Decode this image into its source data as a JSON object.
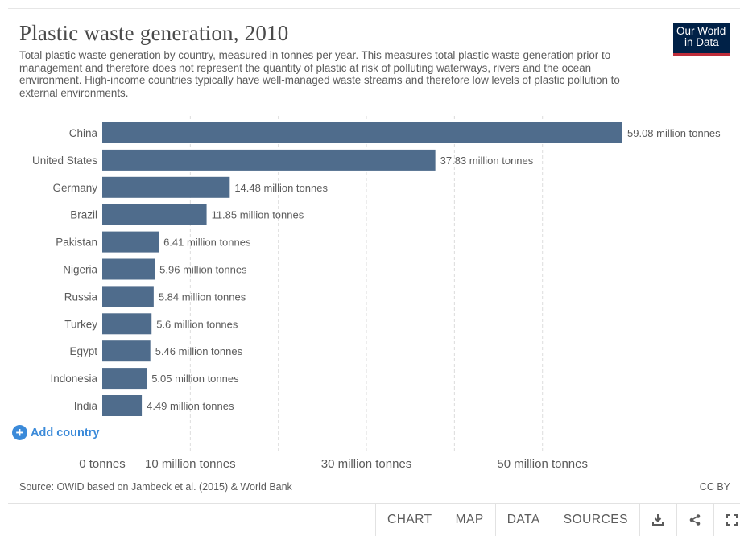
{
  "header": {
    "title": "Plastic waste generation, 2010",
    "subtitle": "Total plastic waste generation by country, measured in tonnes per year. This measures total plastic waste generation prior to management and therefore does not represent the quantity of plastic at risk of polluting waterways, rivers and the ocean environment. High-income countries typically have well-managed waste streams and therefore low levels of plastic pollution to external environments.",
    "logo_line1": "Our World",
    "logo_line2": "in Data"
  },
  "chart_data": {
    "type": "bar",
    "orientation": "horizontal",
    "categories": [
      "China",
      "United States",
      "Germany",
      "Brazil",
      "Pakistan",
      "Nigeria",
      "Russia",
      "Turkey",
      "Egypt",
      "Indonesia",
      "India"
    ],
    "values": [
      59.08,
      37.83,
      14.48,
      11.85,
      6.41,
      5.96,
      5.84,
      5.6,
      5.46,
      5.05,
      4.49
    ],
    "value_labels": [
      "59.08 million tonnes",
      "37.83 million tonnes",
      "14.48 million tonnes",
      "11.85 million tonnes",
      "6.41 million tonnes",
      "5.96 million tonnes",
      "5.84 million tonnes",
      "5.6 million tonnes",
      "5.46 million tonnes",
      "5.05 million tonnes",
      "4.49 million tonnes"
    ],
    "unit": "million tonnes",
    "xlim": [
      0,
      59.08
    ],
    "x_ticks": [
      0,
      10,
      30,
      50
    ],
    "x_tick_labels": [
      "0 tonnes",
      "10 million tonnes",
      "30 million tonnes",
      "50 million tonnes"
    ],
    "gridlines": [
      10,
      20,
      30,
      40,
      50
    ],
    "grid": true,
    "bar_color": "#4f6c8c",
    "title": "Plastic waste generation, 2010",
    "xlabel": "",
    "ylabel": ""
  },
  "controls": {
    "add_country_label": "Add country"
  },
  "footer": {
    "source": "Source: OWID based on Jambeck et al. (2015) & World Bank",
    "license": "CC BY"
  },
  "tabs": [
    "CHART",
    "MAP",
    "DATA",
    "SOURCES"
  ],
  "icons": {
    "download": "download-icon",
    "share": "share-icon",
    "fullscreen": "fullscreen-icon"
  },
  "colors": {
    "logo_bg": "#002147",
    "logo_accent": "#be2d3a",
    "link": "#3b8ad9"
  }
}
